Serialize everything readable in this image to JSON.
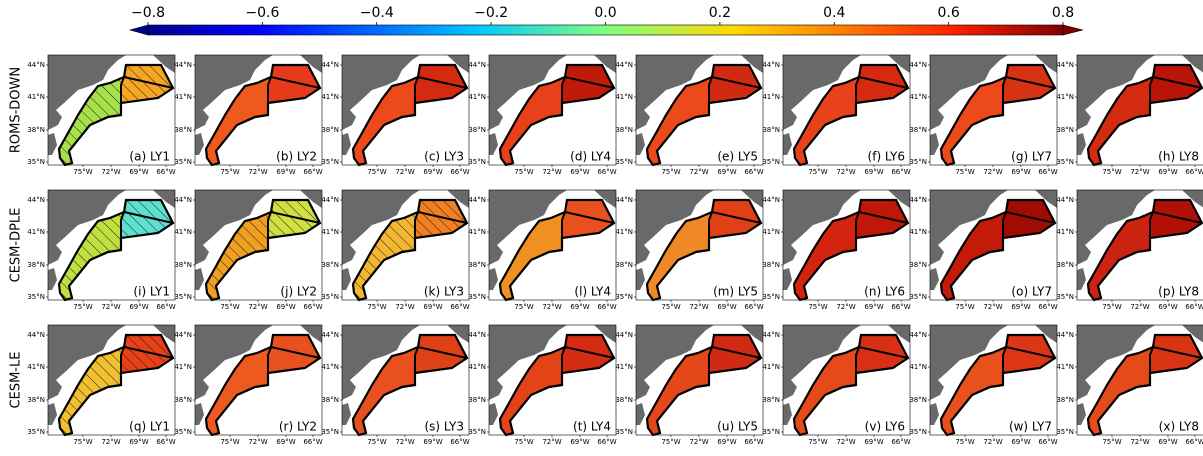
{
  "colorbar": {
    "lim": [
      -0.8,
      0.8
    ],
    "ticks": [
      {
        "value": -0.8,
        "label": "−0.8"
      },
      {
        "value": -0.6,
        "label": "−0.6"
      },
      {
        "value": -0.4,
        "label": "−0.4"
      },
      {
        "value": -0.2,
        "label": "−0.2"
      },
      {
        "value": 0,
        "label": "0.0"
      },
      0.2,
      0.4,
      0.6,
      0.8
    ]
  },
  "lat_ticks": [
    "44°N",
    "41°N",
    "38°N",
    "35°N"
  ],
  "lon_ticks": [
    "75°W",
    "72°W",
    "69°W",
    "66°W"
  ],
  "rows": [
    {
      "label": "ROMS-DOWN",
      "panels": [
        {
          "label": "(a) LY1",
          "color_ne": "#f5a623",
          "color_sw": "#a8e04a",
          "hatch": true
        },
        {
          "label": "(b) LY2",
          "color_ne": "#e63b1a",
          "color_sw": "#ee5a1e",
          "hatch": false
        },
        {
          "label": "(c) LY3",
          "color_ne": "#d42a10",
          "color_sw": "#ec4a1a",
          "hatch": false
        },
        {
          "label": "(d) LY4",
          "color_ne": "#c01a0a",
          "color_sw": "#e8401a",
          "hatch": false
        },
        {
          "label": "(e) LY5",
          "color_ne": "#d02a12",
          "color_sw": "#ec4a1a",
          "hatch": false
        },
        {
          "label": "(f) LY6",
          "color_ne": "#d42a12",
          "color_sw": "#e8421a",
          "hatch": false
        },
        {
          "label": "(g) LY7",
          "color_ne": "#d83214",
          "color_sw": "#ec4a1a",
          "hatch": false
        },
        {
          "label": "(h) LY8",
          "color_ne": "#b81408",
          "color_sw": "#d42a10",
          "hatch": false
        }
      ]
    },
    {
      "label": "CESM-DPLE",
      "panels": [
        {
          "label": "(i) LY1",
          "color_ne": "#5ee0d0",
          "color_sw": "#c0e040",
          "hatch": true
        },
        {
          "label": "(j) LY2",
          "color_ne": "#d0e040",
          "color_sw": "#f0a020",
          "hatch": true
        },
        {
          "label": "(k) LY3",
          "color_ne": "#f08020",
          "color_sw": "#f4b830",
          "hatch": true
        },
        {
          "label": "(l) LY4",
          "color_ne": "#e85020",
          "color_sw": "#f09020",
          "hatch": false
        },
        {
          "label": "(m) LY5",
          "color_ne": "#e04018",
          "color_sw": "#f08828",
          "hatch": false
        },
        {
          "label": "(n) LY6",
          "color_ne": "#c01808",
          "color_sw": "#d42410",
          "hatch": false
        },
        {
          "label": "(o) LY7",
          "color_ne": "#a00c04",
          "color_sw": "#c41a0a",
          "hatch": false
        },
        {
          "label": "(p) LY8",
          "color_ne": "#b01006",
          "color_sw": "#cc2210",
          "hatch": false
        }
      ]
    },
    {
      "label": "CESM-LE",
      "panels": [
        {
          "label": "(q) LY1",
          "color_ne": "#e84018",
          "color_sw": "#f0c030",
          "hatch": true
        },
        {
          "label": "(r) LY2",
          "color_ne": "#e85020",
          "color_sw": "#ec5a20",
          "hatch": false
        },
        {
          "label": "(s) LY3",
          "color_ne": "#e04018",
          "color_sw": "#e85020",
          "hatch": false
        },
        {
          "label": "(t) LY4",
          "color_ne": "#d42c12",
          "color_sw": "#e24418",
          "hatch": false
        },
        {
          "label": "(u) LY5",
          "color_ne": "#d02a12",
          "color_sw": "#e44818",
          "hatch": false
        },
        {
          "label": "(v) LY6",
          "color_ne": "#d83014",
          "color_sw": "#e64a1a",
          "hatch": false
        },
        {
          "label": "(w) LY7",
          "color_ne": "#dc3616",
          "color_sw": "#e8501c",
          "hatch": false
        },
        {
          "label": "(x) LY8",
          "color_ne": "#d83414",
          "color_sw": "#e44a1a",
          "hatch": false
        }
      ]
    }
  ]
}
